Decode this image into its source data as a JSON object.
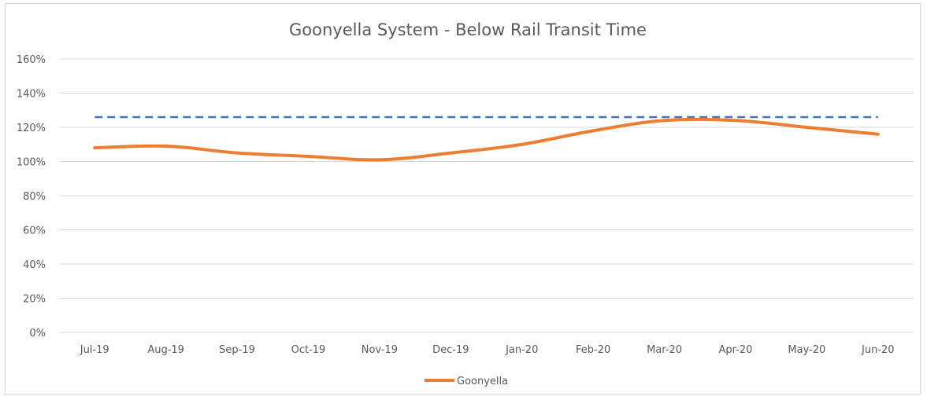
{
  "chart_data": {
    "type": "line",
    "title": "Goonyella System - Below Rail Transit Time",
    "categories": [
      "Jul-19",
      "Aug-19",
      "Sep-19",
      "Oct-19",
      "Nov-19",
      "Dec-19",
      "Jan-20",
      "Feb-20",
      "Mar-20",
      "Apr-20",
      "May-20",
      "Jun-20"
    ],
    "y_ticks": [
      "0%",
      "20%",
      "40%",
      "60%",
      "80%",
      "100%",
      "120%",
      "140%",
      "160%"
    ],
    "ylim": [
      0,
      160
    ],
    "y_unit": "percent",
    "grid": true,
    "legend_position": "bottom",
    "series": [
      {
        "name": "Goonyella",
        "values": [
          108,
          109,
          105,
          103,
          101,
          105,
          110,
          118,
          124,
          124,
          120,
          116
        ],
        "color": "#ed7d31",
        "style": "solid"
      }
    ],
    "reference_lines": [
      {
        "value": 126,
        "color": "#4472c4",
        "style": "dashed"
      }
    ]
  }
}
